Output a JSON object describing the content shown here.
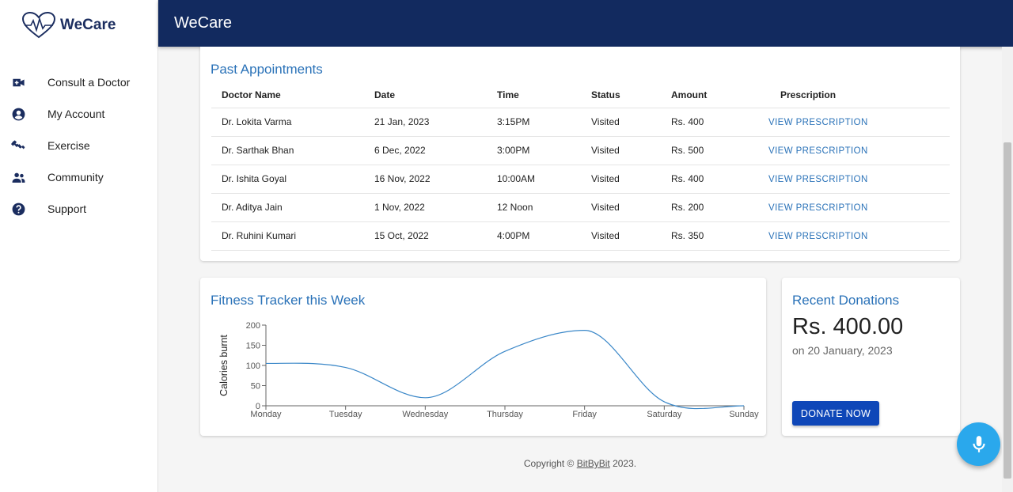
{
  "app": {
    "brand": "WeCare",
    "header_title": "WeCare"
  },
  "sidebar": {
    "items": [
      {
        "label": "Consult a Doctor",
        "icon": "video-camera-icon"
      },
      {
        "label": "My Account",
        "icon": "account-circle-icon"
      },
      {
        "label": "Exercise",
        "icon": "fitness-icon"
      },
      {
        "label": "Community",
        "icon": "people-icon"
      },
      {
        "label": "Support",
        "icon": "help-circle-icon"
      }
    ]
  },
  "appointments": {
    "title": "Past Appointments",
    "columns": [
      "Doctor Name",
      "Date",
      "Time",
      "Status",
      "Amount",
      "Prescription"
    ],
    "rows": [
      {
        "doctor": "Dr. Lokita Varma",
        "date": "21 Jan, 2023",
        "time": "3:15PM",
        "status": "Visited",
        "amount": "Rs. 400",
        "prescription": "VIEW PRESCRIPTION"
      },
      {
        "doctor": "Dr. Sarthak Bhan",
        "date": "6 Dec, 2022",
        "time": "3:00PM",
        "status": "Visited",
        "amount": "Rs. 500",
        "prescription": "VIEW PRESCRIPTION"
      },
      {
        "doctor": "Dr. Ishita Goyal",
        "date": "16 Nov, 2022",
        "time": "10:00AM",
        "status": "Visited",
        "amount": "Rs. 400",
        "prescription": "VIEW PRESCRIPTION"
      },
      {
        "doctor": "Dr. Aditya Jain",
        "date": "1 Nov, 2022",
        "time": "12 Noon",
        "status": "Visited",
        "amount": "Rs. 200",
        "prescription": "VIEW PRESCRIPTION"
      },
      {
        "doctor": "Dr. Ruhini Kumari",
        "date": "15 Oct, 2022",
        "time": "4:00PM",
        "status": "Visited",
        "amount": "Rs. 350",
        "prescription": "VIEW PRESCRIPTION"
      }
    ]
  },
  "fitness": {
    "title": "Fitness Tracker this Week"
  },
  "chart_data": {
    "type": "line",
    "categories": [
      "Monday",
      "Tuesday",
      "Wednesday",
      "Thursday",
      "Friday",
      "Saturday",
      "Sunday"
    ],
    "series": [
      {
        "values": [
          105,
          95,
          20,
          135,
          187,
          10,
          0
        ]
      }
    ],
    "ylabel": "Calories burnt",
    "xlabel": "",
    "ylim": [
      0,
      200
    ],
    "yticks": [
      0,
      50,
      100,
      150,
      200
    ],
    "grid": false,
    "line_color": "#3a87c8"
  },
  "donations": {
    "title": "Recent Donations",
    "amount": "Rs. 400.00",
    "date": "on 20 January, 2023",
    "button": "DONATE NOW"
  },
  "footer": {
    "prefix": "Copyright © ",
    "link": "BitByBit",
    "suffix": " 2023."
  },
  "colors": {
    "header_bg": "#122a5f",
    "accent_blue": "#2a72b8",
    "button_blue": "#0f47b8",
    "mic_blue": "#2aa8ec"
  },
  "mic": {
    "icon": "microphone-icon"
  }
}
